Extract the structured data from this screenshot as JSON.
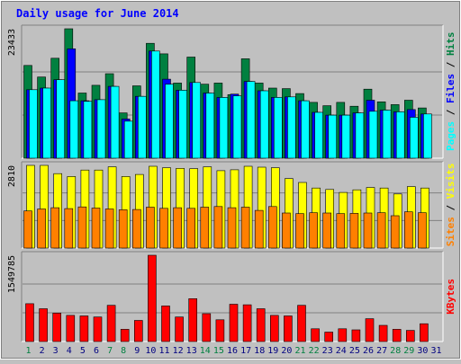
{
  "chart_data": {
    "type": "bar",
    "title": "Daily usage for June 2014",
    "days": [
      "1",
      "2",
      "3",
      "4",
      "5",
      "6",
      "7",
      "8",
      "9",
      "10",
      "11",
      "12",
      "13",
      "14",
      "15",
      "16",
      "17",
      "18",
      "19",
      "20",
      "21",
      "22",
      "23",
      "24",
      "25",
      "26",
      "27",
      "28",
      "29",
      "30",
      "31"
    ],
    "weekend_days": [
      "1",
      "7",
      "8",
      "14",
      "15",
      "21",
      "22",
      "28",
      "29"
    ],
    "panels": [
      {
        "id": "hits-files-pages",
        "ymax_label": "23433",
        "ymax": 23433,
        "legend": [
          "Pages",
          "Files",
          "Hits"
        ],
        "series": [
          {
            "name": "Hits",
            "color": "#008040",
            "values": [
              16800,
              14700,
              18100,
              23433,
              11800,
              13200,
              15300,
              8200,
              13100,
              20800,
              18900,
              13600,
              18300,
              13400,
              13600,
              11500,
              18000,
              13600,
              12700,
              12600,
              11700,
              10100,
              9500,
              10100,
              9400,
              12500,
              10200,
              9700,
              10500,
              9100,
              0
            ]
          },
          {
            "name": "Files",
            "color": "#0000ff",
            "values": [
              12400,
              12700,
              14200,
              19800,
              10400,
              10600,
              13000,
              7100,
              11200,
              19400,
              14300,
              12300,
              13700,
              11800,
              11000,
              11600,
              13900,
              12200,
              11000,
              11100,
              10400,
              8300,
              7800,
              7800,
              8200,
              10500,
              8700,
              8400,
              8800,
              8000,
              0
            ]
          },
          {
            "name": "Pages",
            "color": "#00ffff",
            "values": [
              12400,
              12700,
              14200,
              10400,
              10300,
              10600,
              13000,
              6700,
              11200,
              19400,
              13400,
              12300,
              13700,
              11800,
              11000,
              11300,
              13900,
              12200,
              11000,
              11100,
              10400,
              8300,
              7800,
              7800,
              8200,
              8500,
              8700,
              8400,
              7400,
              8000,
              0
            ]
          }
        ]
      },
      {
        "id": "visits-sites",
        "ymax_label": "2810",
        "ymax": 2810,
        "legend": [
          "Sites",
          "Visits"
        ],
        "series": [
          {
            "name": "Visits",
            "color": "#ffff00",
            "values": [
              2810,
              2810,
              2530,
              2430,
              2650,
              2650,
              2760,
              2430,
              2500,
              2780,
              2730,
              2710,
              2700,
              2760,
              2630,
              2660,
              2780,
              2750,
              2730,
              2360,
              2230,
              2040,
              1990,
              1890,
              1980,
              2060,
              2040,
              1840,
              2090,
              2040,
              0
            ]
          },
          {
            "name": "Sites",
            "color": "#ff8000",
            "values": [
              1260,
              1330,
              1370,
              1340,
              1400,
              1360,
              1330,
              1300,
              1310,
              1390,
              1350,
              1370,
              1350,
              1390,
              1410,
              1370,
              1390,
              1280,
              1410,
              1190,
              1170,
              1200,
              1190,
              1170,
              1180,
              1190,
              1200,
              1100,
              1230,
              1200,
              0
            ]
          }
        ]
      },
      {
        "id": "kbytes",
        "ymax_label": "1549785",
        "ymax": 1549785,
        "legend": [
          "KBytes"
        ],
        "series": [
          {
            "name": "KBytes",
            "color": "#ff0000",
            "values": [
              680000,
              590000,
              510000,
              470000,
              460000,
              440000,
              650000,
              220000,
              380000,
              1549785,
              640000,
              440000,
              770000,
              500000,
              390000,
              670000,
              660000,
              590000,
              470000,
              460000,
              650000,
              230000,
              170000,
              230000,
              210000,
              410000,
              290000,
              220000,
              200000,
              320000,
              0
            ]
          }
        ]
      }
    ],
    "colors": {
      "background": "#c0c0c0",
      "plot": "#c0c0c0",
      "title": "#0000ff",
      "grid": "#808080",
      "weekday_label": "#000080",
      "weekend_label": "#008040"
    }
  }
}
